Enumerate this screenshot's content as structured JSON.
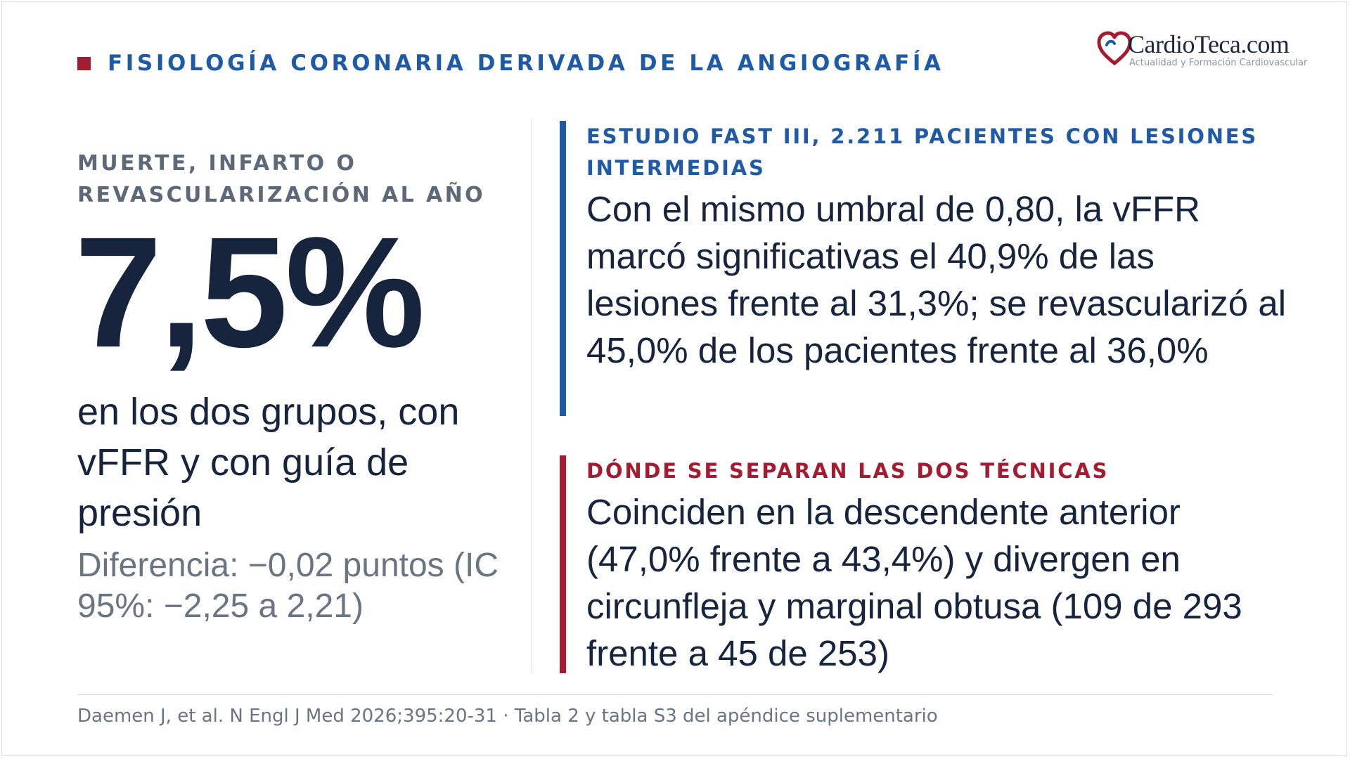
{
  "header": {
    "title": "FISIOLOGÍA CORONARIA DERIVADA DE LA ANGIOGRAFÍA"
  },
  "logo": {
    "brand": "CardioTeca.com",
    "tagline": "Actualidad y Formación Cardiovascular"
  },
  "left": {
    "kicker": "MUERTE, INFARTO O REVASCULARIZACIÓN AL AÑO",
    "big_number": "7,5%",
    "caption": "en los dos grupos, con vFFR y con guía de presión",
    "difference": "Diferencia: −0,02 puntos (IC 95%: −2,25 a 2,21)"
  },
  "blocks": [
    {
      "label": "ESTUDIO FAST III, 2.211 PACIENTES CON LESIONES INTERMEDIAS",
      "body": "Con el mismo umbral de 0,80, la vFFR marcó significativas el 40,9% de las lesiones frente al 31,3%; se revascularizó al 45,0% de los pacientes frente al 36,0%"
    },
    {
      "label": "DÓNDE SE SEPARAN LAS DOS TÉCNICAS",
      "body": "Coinciden en la descendente anterior (47,0% frente a 43,4%) y divergen en circunfleja y marginal obtusa (109 de 293 frente a 45 de 253)"
    }
  ],
  "source": "Daemen J, et al. N Engl J Med 2026;395:20-31 · Tabla 2 y tabla S3 del apéndice suplementario",
  "colors": {
    "navy": "#17243d",
    "blue_accent": "#1f5aa6",
    "red_accent": "#a51c30",
    "gray_text": "#6a7584"
  }
}
